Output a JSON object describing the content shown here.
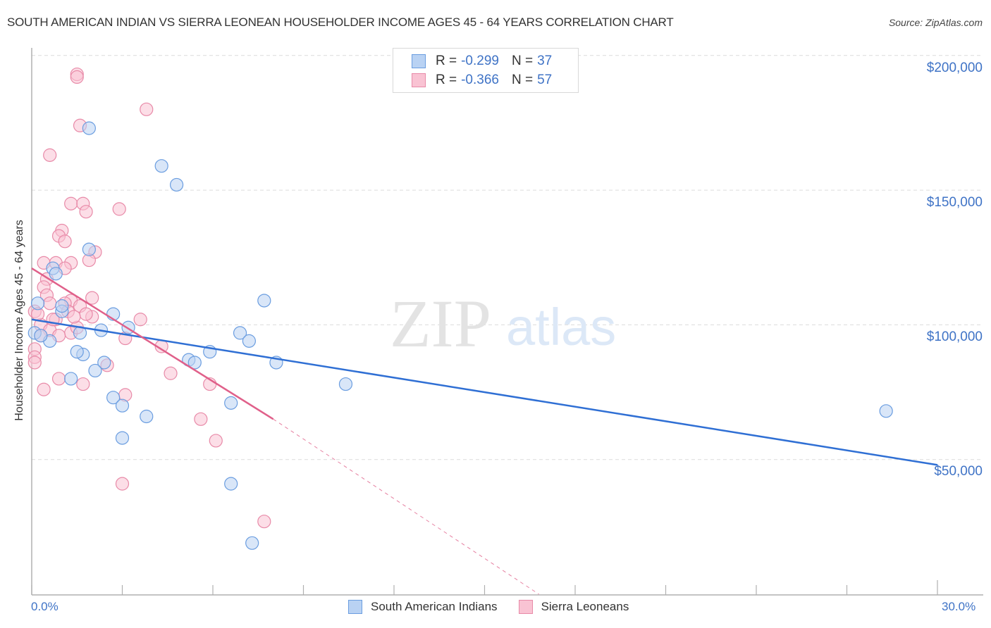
{
  "header": {
    "title": "SOUTH AMERICAN INDIAN VS SIERRA LEONEAN HOUSEHOLDER INCOME AGES 45 - 64 YEARS CORRELATION CHART",
    "source": "Source: ZipAtlas.com"
  },
  "colors": {
    "blue_fill": "#b9d2f3",
    "blue_stroke": "#6a9de0",
    "blue_line": "#2f6fd4",
    "pink_fill": "#f9c3d3",
    "pink_stroke": "#e88aa8",
    "pink_line": "#e0608a",
    "tick_label": "#3f73c6"
  },
  "legend": {
    "rows": [
      {
        "r_label": "R =",
        "r_value": "-0.299",
        "n_label": "N =",
        "n_value": "37"
      },
      {
        "r_label": "R =",
        "r_value": "-0.366",
        "n_label": "N =",
        "n_value": "57"
      }
    ]
  },
  "bottom_legend": {
    "items": [
      {
        "label": "South American Indians"
      },
      {
        "label": "Sierra Leoneans"
      }
    ]
  },
  "axes": {
    "ylabel": "Householder Income Ages 45 - 64 years",
    "y_ticks": [
      "$200,000",
      "$150,000",
      "$100,000",
      "$50,000"
    ],
    "x_ticks": [
      "0.0%",
      "30.0%"
    ]
  },
  "watermark": {
    "zip": "ZIP",
    "atlas": "atlas"
  },
  "chart_data": {
    "type": "scatter",
    "title": "SOUTH AMERICAN INDIAN VS SIERRA LEONEAN HOUSEHOLDER INCOME AGES 45 - 64 YEARS CORRELATION CHART",
    "xlabel": "",
    "ylabel": "Householder Income Ages 45 - 64 years",
    "xlim": [
      0,
      30
    ],
    "ylim": [
      0,
      200000
    ],
    "x_unit": "%",
    "grid": true,
    "legend_position": "top-center",
    "series": [
      {
        "name": "South American Indians",
        "R": -0.299,
        "N": 37,
        "trend": {
          "x": [
            0,
            30
          ],
          "y": [
            102000,
            48000
          ]
        },
        "points": [
          [
            1.9,
            173000
          ],
          [
            4.3,
            159000
          ],
          [
            4.8,
            152000
          ],
          [
            1.9,
            128000
          ],
          [
            0.7,
            121000
          ],
          [
            0.8,
            119000
          ],
          [
            7.7,
            109000
          ],
          [
            0.2,
            108000
          ],
          [
            1.0,
            105000
          ],
          [
            2.7,
            104000
          ],
          [
            0.1,
            97000
          ],
          [
            1.6,
            97000
          ],
          [
            2.3,
            98000
          ],
          [
            3.2,
            99000
          ],
          [
            6.9,
            97000
          ],
          [
            7.2,
            94000
          ],
          [
            0.6,
            94000
          ],
          [
            1.7,
            89000
          ],
          [
            1.5,
            90000
          ],
          [
            5.9,
            90000
          ],
          [
            5.2,
            87000
          ],
          [
            5.4,
            86000
          ],
          [
            8.1,
            86000
          ],
          [
            2.4,
            86000
          ],
          [
            2.1,
            83000
          ],
          [
            1.3,
            80000
          ],
          [
            10.4,
            78000
          ],
          [
            2.7,
            73000
          ],
          [
            3.0,
            70000
          ],
          [
            6.6,
            71000
          ],
          [
            3.8,
            66000
          ],
          [
            3.0,
            58000
          ],
          [
            6.6,
            41000
          ],
          [
            7.3,
            19000
          ],
          [
            28.3,
            68000
          ],
          [
            0.3,
            96000
          ],
          [
            1.0,
            107000
          ]
        ]
      },
      {
        "name": "Sierra Leoneans",
        "R": -0.366,
        "N": 57,
        "trend": {
          "x": [
            0,
            8.0
          ],
          "y": [
            121000,
            65000
          ],
          "dashed_extension_to": [
            16.8,
            0
          ]
        },
        "points": [
          [
            1.5,
            193000
          ],
          [
            1.5,
            192000
          ],
          [
            3.8,
            180000
          ],
          [
            1.6,
            174000
          ],
          [
            0.6,
            163000
          ],
          [
            1.3,
            145000
          ],
          [
            1.7,
            145000
          ],
          [
            1.8,
            142000
          ],
          [
            2.9,
            143000
          ],
          [
            1.0,
            135000
          ],
          [
            0.9,
            133000
          ],
          [
            1.1,
            131000
          ],
          [
            2.1,
            127000
          ],
          [
            0.4,
            123000
          ],
          [
            0.8,
            123000
          ],
          [
            1.3,
            123000
          ],
          [
            1.1,
            121000
          ],
          [
            0.5,
            117000
          ],
          [
            0.4,
            114000
          ],
          [
            0.5,
            111000
          ],
          [
            2.0,
            110000
          ],
          [
            0.6,
            108000
          ],
          [
            1.3,
            109000
          ],
          [
            1.1,
            108000
          ],
          [
            1.6,
            107000
          ],
          [
            0.1,
            105000
          ],
          [
            1.2,
            105000
          ],
          [
            0.8,
            102000
          ],
          [
            2.0,
            103000
          ],
          [
            3.6,
            102000
          ],
          [
            1.8,
            104000
          ],
          [
            0.3,
            100000
          ],
          [
            0.6,
            98000
          ],
          [
            1.3,
            97000
          ],
          [
            0.9,
            96000
          ],
          [
            1.5,
            99000
          ],
          [
            3.1,
            95000
          ],
          [
            4.3,
            92000
          ],
          [
            0.1,
            91000
          ],
          [
            0.1,
            88000
          ],
          [
            0.1,
            86000
          ],
          [
            2.5,
            85000
          ],
          [
            4.6,
            82000
          ],
          [
            0.9,
            80000
          ],
          [
            1.7,
            78000
          ],
          [
            0.4,
            76000
          ],
          [
            5.9,
            78000
          ],
          [
            3.1,
            74000
          ],
          [
            5.6,
            65000
          ],
          [
            6.1,
            57000
          ],
          [
            3.0,
            41000
          ],
          [
            7.7,
            27000
          ],
          [
            0.2,
            104000
          ],
          [
            1.4,
            103000
          ],
          [
            0.7,
            102000
          ],
          [
            1.9,
            124000
          ],
          [
            0.3,
            96000
          ]
        ]
      }
    ]
  }
}
